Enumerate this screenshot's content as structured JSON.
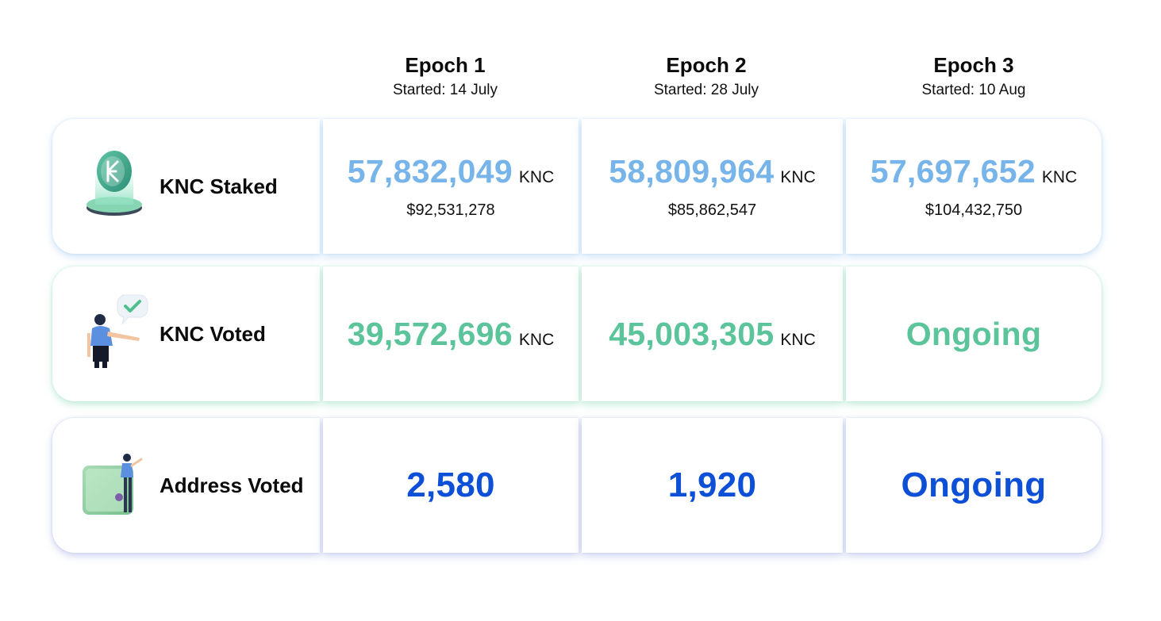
{
  "epochs": [
    {
      "title": "Epoch 1",
      "started": "Started: 14 July"
    },
    {
      "title": "Epoch 2",
      "started": "Started: 28 July"
    },
    {
      "title": "Epoch 3",
      "started": "Started: 10 Aug"
    }
  ],
  "rows": {
    "staked": {
      "label": "KNC Staked",
      "icon": "knc-token-icon",
      "values": [
        {
          "amount": "57,832,049",
          "unit": "KNC",
          "usd": "$92,531,278"
        },
        {
          "amount": "58,809,964",
          "unit": "KNC",
          "usd": "$85,862,547"
        },
        {
          "amount": "57,697,652",
          "unit": "KNC",
          "usd": "$104,432,750"
        }
      ]
    },
    "voted": {
      "label": "KNC Voted",
      "icon": "voter-person-icon",
      "values": [
        {
          "amount": "39,572,696",
          "unit": "KNC"
        },
        {
          "amount": "45,003,305",
          "unit": "KNC"
        },
        {
          "amount": "Ongoing"
        }
      ]
    },
    "address": {
      "label": "Address Voted",
      "icon": "wallet-person-icon",
      "values": [
        {
          "amount": "2,580"
        },
        {
          "amount": "1,920"
        },
        {
          "amount": "Ongoing"
        }
      ]
    }
  },
  "colors": {
    "staked": "#76b4ea",
    "voted": "#5cc49a",
    "address": "#0d4fd6"
  }
}
